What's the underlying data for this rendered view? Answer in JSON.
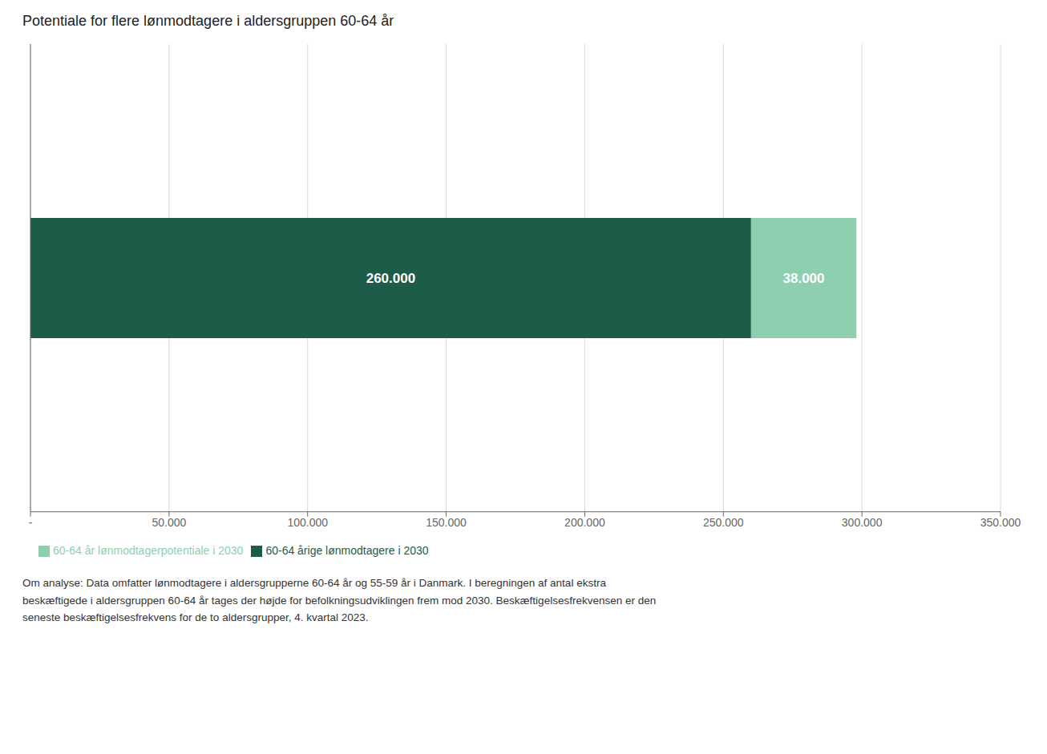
{
  "chart_data": {
    "type": "bar",
    "title": "Potentiale for flere lønmodtagere i aldersgruppen 60-64 år",
    "orientation": "horizontal",
    "stacked": true,
    "data_labels": true,
    "grid": true,
    "legend": "lower left",
    "tick_labels": "x",
    "categories": [
      null
    ],
    "series": [
      {
        "name": "60-64 årige lønmodtagere i 2030",
        "color": "#1e5c4a",
        "values": [
          260000
        ],
        "value_labels": [
          "260.000"
        ]
      },
      {
        "name": "60-64 år lønmodtagerpotentiale i 2030",
        "color": "#8ecfb0",
        "values": [
          38000
        ],
        "value_labels": [
          "38.000"
        ]
      }
    ],
    "xlim": [
      0,
      350000
    ],
    "xticks": [
      {
        "value": 0,
        "label": "-"
      },
      {
        "value": 50000,
        "label": "50.000"
      },
      {
        "value": 100000,
        "label": "100.000"
      },
      {
        "value": 150000,
        "label": "150.000"
      },
      {
        "value": 200000,
        "label": "200.000"
      },
      {
        "value": 250000,
        "label": "250.000"
      },
      {
        "value": 300000,
        "label": "300.000"
      },
      {
        "value": 350000,
        "label": "350.000"
      }
    ],
    "annotations": [
      "Om analyse: Data omfatter lønmodtagere i aldersgrupperne 60-64 år og 55-59 år i Danmark. I beregningen af antal ekstra\nbeskæftigede i aldersgruppen 60-64 år tages der højde for befolkningsudviklingen frem mod 2030. Beskæftigelsesfrekvensen er den\nseneste beskæftigelsesfrekvens for de to aldersgrupper, 4. kvartal 2023."
    ]
  }
}
